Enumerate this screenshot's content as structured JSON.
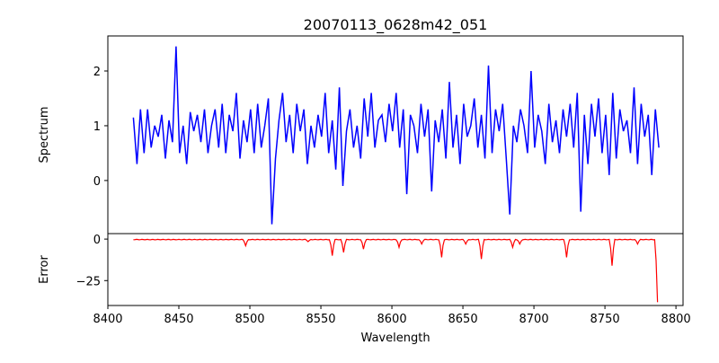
{
  "chart_data": {
    "type": "line",
    "title": "20070113_0628m42_051",
    "xlabel": "Wavelength",
    "panels": [
      {
        "ylabel": "Spectrum",
        "ylim": [
          -0.97,
          2.64
        ],
        "yticks": [
          0,
          1,
          2
        ],
        "ytick_labels": [
          "0",
          "1",
          "2"
        ],
        "color": "#0000ff"
      },
      {
        "ylabel": "Error",
        "ylim": [
          -40,
          3.3
        ],
        "yticks": [
          0,
          -25
        ],
        "ytick_labels": [
          "0",
          "−25"
        ],
        "color": "#ff0000"
      }
    ],
    "xlim": [
      8400,
      8805
    ],
    "xticks": [
      8400,
      8450,
      8500,
      8550,
      8600,
      8650,
      8700,
      8750,
      8800
    ],
    "xtick_labels": [
      "8400",
      "8450",
      "8500",
      "8550",
      "8600",
      "8650",
      "8700",
      "8750",
      "8800"
    ],
    "spectrum": {
      "x_start": 8418,
      "x_step": 2.5,
      "y": [
        1.15,
        0.3,
        1.3,
        0.5,
        1.3,
        0.6,
        1.0,
        0.8,
        1.2,
        0.4,
        1.1,
        0.7,
        2.45,
        0.5,
        1.0,
        0.3,
        1.25,
        0.9,
        1.2,
        0.7,
        1.3,
        0.5,
        1.0,
        1.3,
        0.6,
        1.4,
        0.5,
        1.2,
        0.9,
        1.6,
        0.4,
        1.1,
        0.7,
        1.3,
        0.5,
        1.4,
        0.6,
        1.0,
        1.5,
        -0.8,
        0.4,
        1.1,
        1.6,
        0.7,
        1.2,
        0.5,
        1.4,
        0.9,
        1.3,
        0.3,
        1.0,
        0.6,
        1.2,
        0.8,
        1.6,
        0.5,
        1.1,
        0.2,
        1.7,
        -0.1,
        0.9,
        1.3,
        0.6,
        1.0,
        0.4,
        1.5,
        0.8,
        1.6,
        0.6,
        1.1,
        1.2,
        0.7,
        1.4,
        0.9,
        1.6,
        0.6,
        1.3,
        -0.25,
        1.2,
        1.0,
        0.5,
        1.4,
        0.8,
        1.3,
        -0.2,
        1.1,
        0.7,
        1.3,
        0.4,
        1.8,
        0.6,
        1.2,
        0.3,
        1.4,
        0.8,
        1.0,
        1.5,
        0.6,
        1.2,
        0.4,
        2.1,
        0.5,
        1.3,
        0.9,
        1.4,
        0.4,
        -0.62,
        1.0,
        0.7,
        1.3,
        1.0,
        0.5,
        2.0,
        0.6,
        1.2,
        0.9,
        0.3,
        1.4,
        0.7,
        1.1,
        0.5,
        1.3,
        0.8,
        1.4,
        0.6,
        1.6,
        -0.57,
        1.2,
        0.3,
        1.4,
        0.8,
        1.5,
        0.5,
        1.2,
        0.1,
        1.6,
        0.4,
        1.3,
        0.9,
        1.1,
        0.5,
        1.7,
        0.3,
        1.4,
        0.8,
        1.2,
        0.1,
        1.3,
        0.6
      ]
    },
    "error": {
      "baseline": -0.3,
      "x_range": [
        8418,
        8787
      ],
      "dips": [
        [
          8497,
          -4
        ],
        [
          8541,
          -1.5
        ],
        [
          8558,
          -10
        ],
        [
          8566,
          -8
        ],
        [
          8580,
          -6
        ],
        [
          8605,
          -5
        ],
        [
          8621,
          -3
        ],
        [
          8635,
          -11
        ],
        [
          8652,
          -3
        ],
        [
          8663,
          -12
        ],
        [
          8685,
          -5
        ],
        [
          8690,
          -3
        ],
        [
          8723,
          -11
        ],
        [
          8755,
          -16
        ],
        [
          8773,
          -3
        ],
        [
          8787,
          -38
        ]
      ]
    }
  }
}
